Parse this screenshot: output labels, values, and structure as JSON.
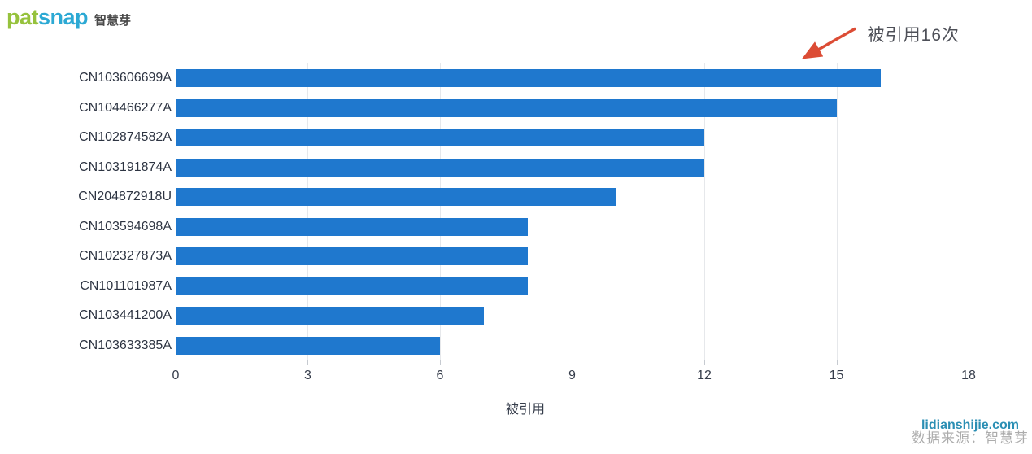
{
  "logo": {
    "brand_green": "pat",
    "brand_blue": "snap",
    "brand_cn": "智慧芽",
    "green_color": "#96C23D",
    "blue_color": "#2CA9D4"
  },
  "annotation": {
    "text": "被引用16次",
    "arrow_color": "#DC4C35",
    "points_to": "CN103606699A"
  },
  "chart_data": {
    "type": "bar",
    "orientation": "horizontal",
    "categories": [
      "CN103606699A",
      "CN104466277A",
      "CN102874582A",
      "CN103191874A",
      "CN204872918U",
      "CN103594698A",
      "CN102327873A",
      "CN101101987A",
      "CN103441200A",
      "CN103633385A"
    ],
    "values": [
      16,
      15,
      12,
      12,
      10,
      8,
      8,
      8,
      7,
      6
    ],
    "xlabel": "被引用",
    "ylabel": "",
    "title": "",
    "xlim": [
      0,
      18
    ],
    "xticks": [
      0,
      3,
      6,
      9,
      12,
      15,
      18
    ],
    "bar_color": "#1F78CE",
    "grid": true,
    "legend": "none"
  },
  "footer": {
    "watermark": "lidianshijie.com",
    "source": "数据来源：智慧芽"
  }
}
